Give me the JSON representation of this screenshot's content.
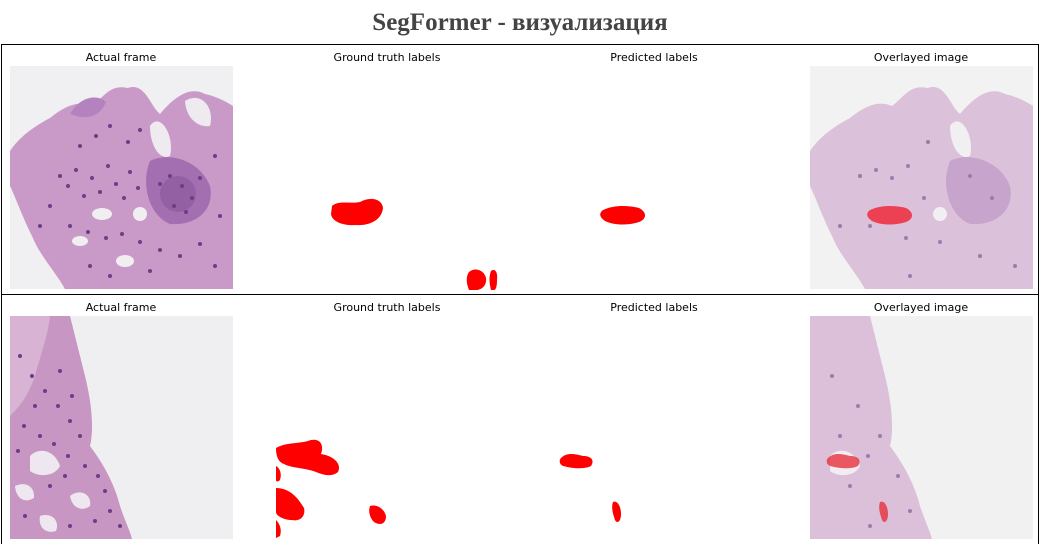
{
  "page": {
    "title": "SegFormer - визуализация"
  },
  "rows": [
    {
      "panels": [
        {
          "title": "Actual frame"
        },
        {
          "title": "Ground truth labels"
        },
        {
          "title": "Predicted labels"
        },
        {
          "title": "Overlayed image"
        }
      ]
    },
    {
      "panels": [
        {
          "title": "Actual frame"
        },
        {
          "title": "Ground truth labels"
        },
        {
          "title": "Predicted labels"
        },
        {
          "title": "Overlayed image"
        }
      ]
    }
  ],
  "colors": {
    "mask": "#ff0000",
    "tissue_pink": "#c99ac8",
    "tissue_purple": "#7f5596",
    "background_tissue": "#f1f0f1",
    "title_text": "#444444"
  }
}
